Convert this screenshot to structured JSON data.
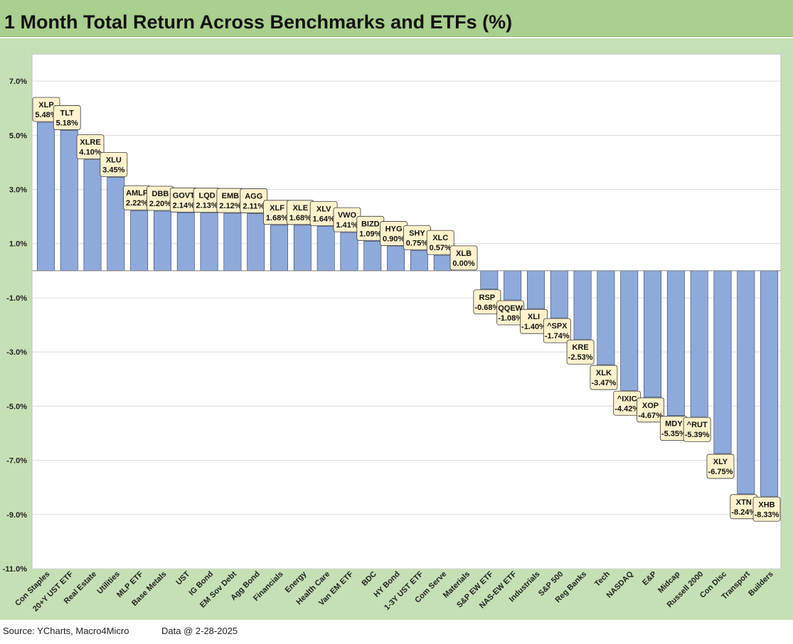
{
  "title": "1 Month Total Return Across Benchmarks and ETFs (%)",
  "footer": {
    "source": "Source: YCharts, Macro4Micro",
    "date": "Data @ 2-28-2025"
  },
  "colors": {
    "title_bg": "#a9d08e",
    "frame_bg": "#c5e0b4",
    "bar_fill": "#8eaadb",
    "bar_stroke": "#2f3e5c",
    "label_bg": "#fff2cc",
    "gridline": "#d9d9d9"
  },
  "chart_data": {
    "type": "bar",
    "title": "1 Month Total Return Across Benchmarks and ETFs (%)",
    "xlabel": "",
    "ylabel": "",
    "ylim": [
      -11.0,
      8.0
    ],
    "yticks": [
      "7.0%",
      "5.0%",
      "3.0%",
      "1.0%",
      "-1.0%",
      "-3.0%",
      "-5.0%",
      "-7.0%",
      "-9.0%",
      "-11.0%"
    ],
    "ytick_values": [
      7,
      5,
      3,
      1,
      -1,
      -3,
      -5,
      -7,
      -9,
      -11
    ],
    "grid": true,
    "categories": [
      "Con Staples",
      "20+Y UST ETF",
      "Real Estate",
      "Utilities",
      "MLP ETF",
      "Base Metals",
      "UST",
      "IG Bond",
      "EM Sov Debt",
      "Agg Bond",
      "Financials",
      "Energy",
      "Health Care",
      "Van EM ETF",
      "BDC",
      "HY Bond",
      "1-3Y UST ETF",
      "Com Serve",
      "Materials",
      "S&P EW ETF",
      "NAS-EW ETF",
      "Industrials",
      "S&P 500",
      "Reg Banks",
      "Tech",
      "NASDAQ",
      "E&P",
      "Midcap",
      "Russell 2000",
      "Con Disc",
      "Transport",
      "Builders"
    ],
    "tickers": [
      "XLP",
      "TLT",
      "XLRE",
      "XLU",
      "AMLP",
      "DBB",
      "GOVT",
      "LQD",
      "EMB",
      "AGG",
      "XLF",
      "XLE",
      "XLV",
      "VWO",
      "BIZD",
      "HYG",
      "SHY",
      "XLC",
      "XLB",
      "RSP",
      "QQEW",
      "XLI",
      "^SPX",
      "KRE",
      "XLK",
      "^IXIC",
      "XOP",
      "MDY",
      "^RUT",
      "XLY",
      "XTN",
      "XHB"
    ],
    "values": [
      5.48,
      5.18,
      4.1,
      3.45,
      2.22,
      2.2,
      2.14,
      2.13,
      2.12,
      2.11,
      1.68,
      1.68,
      1.64,
      1.41,
      1.09,
      0.9,
      0.75,
      0.57,
      0.0,
      -0.68,
      -1.08,
      -1.4,
      -1.74,
      -2.53,
      -3.47,
      -4.42,
      -4.67,
      -5.35,
      -5.39,
      -6.75,
      -8.24,
      -8.33
    ],
    "value_labels": [
      "5.48%",
      "5.18%",
      "4.10%",
      "3.45%",
      "2.22%",
      "2.20%",
      "2.14%",
      "2.13%",
      "2.12%",
      "2.11%",
      "1.68%",
      "1.68%",
      "1.64%",
      "1.41%",
      "1.09%",
      "0.90%",
      "0.75%",
      "0.57%",
      "0.00%",
      "-0.68%",
      "-1.08%",
      "-1.40%",
      "-1.74%",
      "-2.53%",
      "-3.47%",
      "-4.42%",
      "-4.67%",
      "-5.35%",
      "-5.39%",
      "-6.75%",
      "-8.24%",
      "-8.33%"
    ]
  }
}
